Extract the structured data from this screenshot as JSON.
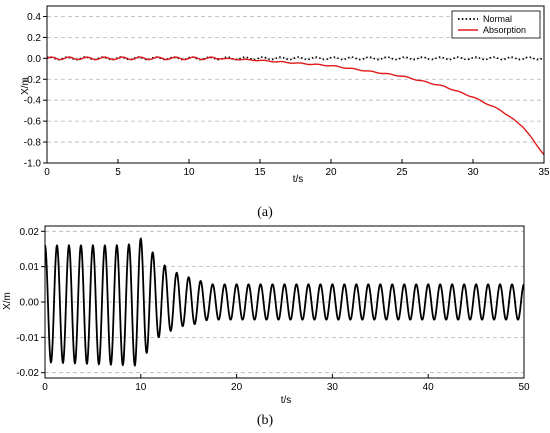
{
  "chart_data": [
    {
      "type": "line",
      "panel_label": "(a)",
      "xlabel": "t/s",
      "ylabel": "X/m",
      "xlim": [
        0,
        35
      ],
      "ylim": [
        -1.0,
        0.5
      ],
      "xticks": [
        "0",
        "5",
        "10",
        "15",
        "20",
        "25",
        "30",
        "35"
      ],
      "yticks": [
        "-1.0",
        "-0.8",
        "-0.6",
        "-0.4",
        "-0.2",
        "0.0",
        "0.2",
        "0.4"
      ],
      "grid": "horizontal dashed",
      "legend_position": "top-right",
      "series": [
        {
          "name": "Normal",
          "style": "dotted",
          "color": "#000000",
          "amplitude": 0.02,
          "period": 1.25,
          "drift": [
            [
              0,
              0.0
            ],
            [
              35,
              0.0
            ]
          ]
        },
        {
          "name": "Absorption",
          "style": "solid",
          "color": "#e0191b",
          "amplitude_before": 0.02,
          "amplitude_after": 0.007,
          "switch_time": 12,
          "period": 1.25,
          "drift": [
            [
              0,
              0.0
            ],
            [
              12,
              0.0
            ],
            [
              15,
              -0.02
            ],
            [
              20,
              -0.07
            ],
            [
              25,
              -0.17
            ],
            [
              28,
              -0.27
            ],
            [
              30,
              -0.37
            ],
            [
              32,
              -0.5
            ],
            [
              33.5,
              -0.65
            ],
            [
              35,
              -0.92
            ]
          ]
        }
      ]
    },
    {
      "type": "line",
      "panel_label": "(b)",
      "xlabel": "t/s",
      "ylabel": "X/m",
      "xlim": [
        0,
        50
      ],
      "ylim": [
        -0.0215,
        0.0215
      ],
      "xticks": [
        "0",
        "10",
        "20",
        "30",
        "40",
        "50"
      ],
      "yticks": [
        "-0.02",
        "-0.01",
        "0.00",
        "0.01",
        "0.02"
      ],
      "grid": "horizontal dashed",
      "series": [
        {
          "name": "",
          "style": "solid",
          "color": "#000000",
          "period": 1.25,
          "envelope": {
            "upper": [
              [
                0,
                0.016
              ],
              [
                8.7,
                0.016
              ],
              [
                9.4,
                0.019
              ],
              [
                10.5,
                0.017
              ],
              [
                11.5,
                0.013
              ],
              [
                13,
                0.009
              ],
              [
                15,
                0.007
              ],
              [
                16.2,
                0.006
              ],
              [
                17,
                0.005
              ],
              [
                50,
                0.005
              ]
            ],
            "lower": [
              [
                0,
                -0.017
              ],
              [
                10,
                -0.018
              ],
              [
                11.2,
                -0.011
              ],
              [
                12.5,
                -0.009
              ],
              [
                14,
                -0.007
              ],
              [
                16.2,
                -0.006
              ],
              [
                17,
                -0.005
              ],
              [
                50,
                -0.005
              ]
            ]
          }
        }
      ]
    }
  ]
}
